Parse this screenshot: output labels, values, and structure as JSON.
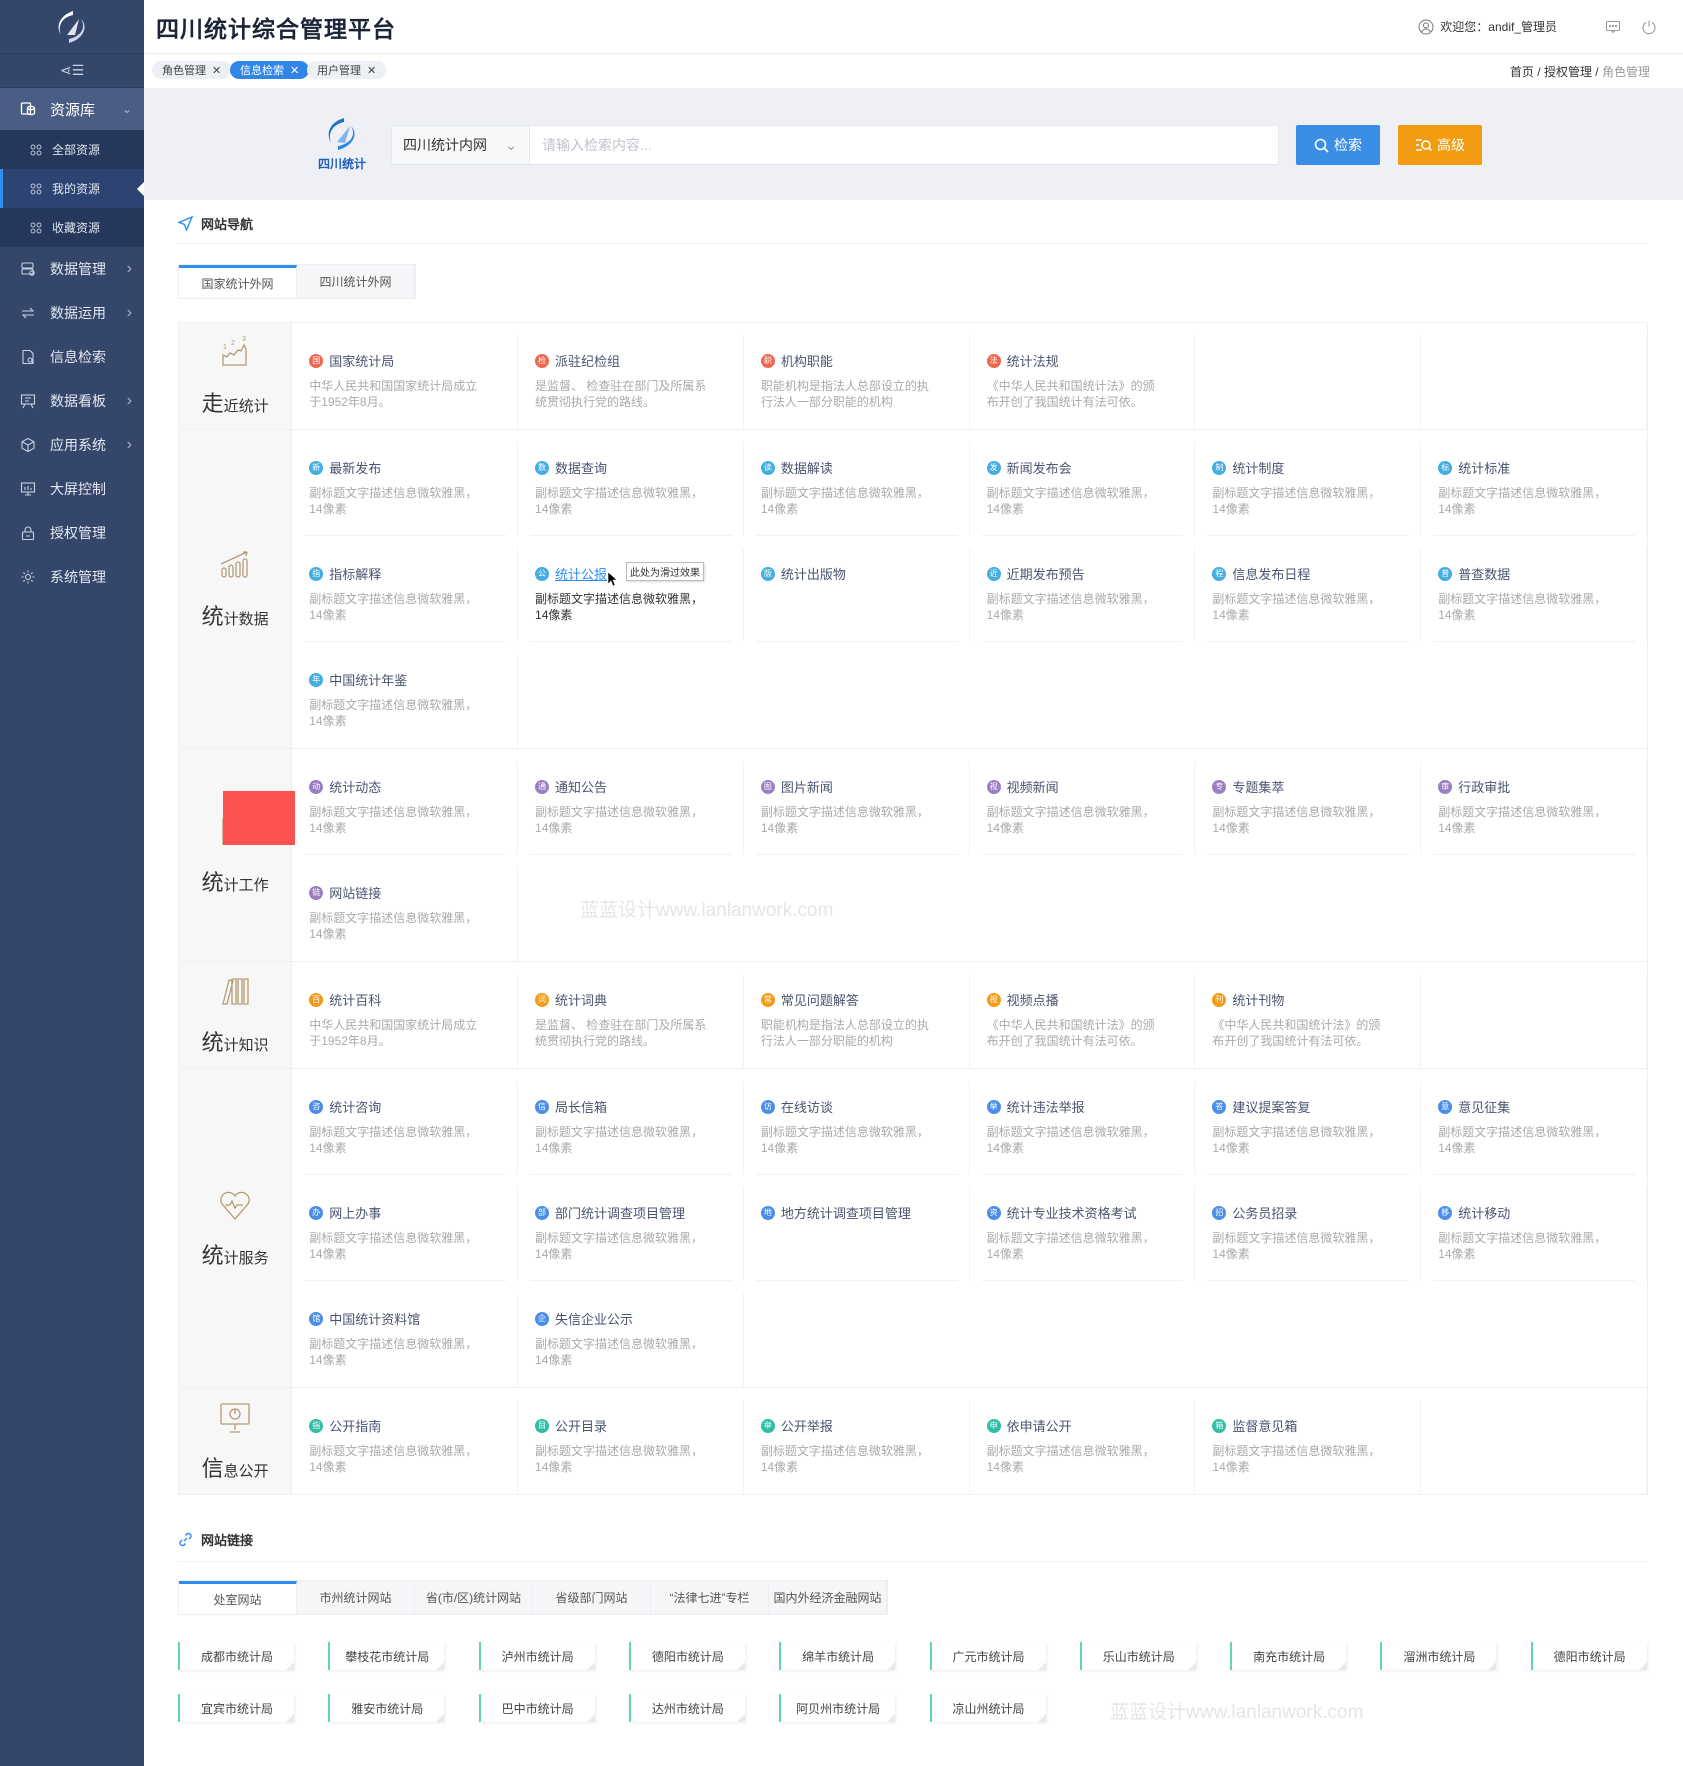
{
  "app": {
    "title": "四川统计综合管理平台",
    "welcome": "欢迎您：andif_管理员"
  },
  "sidebar": {
    "group": {
      "label": "资源库",
      "icon": "database-icon"
    },
    "subitems": [
      {
        "label": "全部资源",
        "active": false
      },
      {
        "label": "我的资源",
        "active": true
      },
      {
        "label": "收藏资源",
        "active": false
      }
    ],
    "items": [
      {
        "label": "数据管理",
        "icon": "server-icon",
        "chevron": true
      },
      {
        "label": "数据运用",
        "icon": "exchange-icon",
        "chevron": true
      },
      {
        "label": "信息检索",
        "icon": "doc-search-icon",
        "chevron": false
      },
      {
        "label": "数据看板",
        "icon": "board-icon",
        "chevron": true
      },
      {
        "label": "应用系统",
        "icon": "cube-icon",
        "chevron": true
      },
      {
        "label": "大屏控制",
        "icon": "monitor-icon",
        "chevron": false
      },
      {
        "label": "授权管理",
        "icon": "lock-icon",
        "chevron": false
      },
      {
        "label": "系统管理",
        "icon": "gear-icon",
        "chevron": false
      }
    ]
  },
  "page_tabs": [
    {
      "label": "角色管理",
      "active": false
    },
    {
      "label": "信息检索",
      "active": true
    },
    {
      "label": "用户管理",
      "active": false
    }
  ],
  "breadcrumb": [
    "首页",
    "授权管理",
    "角色管理"
  ],
  "search": {
    "logo_text": "四川统计",
    "scope": "四川统计内网",
    "placeholder": "请输入检索内容...",
    "search_label": "检索",
    "advanced_label": "高级",
    "search_color": "#3a8ee6",
    "advanced_color": "#f39c12"
  },
  "nav": {
    "heading": "网站导航",
    "tabs": [
      {
        "label": "国家统计外网",
        "active": true
      },
      {
        "label": "四川统计外网",
        "active": false
      }
    ],
    "sections": [
      {
        "big": "走",
        "rest": "近统计",
        "icon": "growth-chart-icon",
        "color": "#f0674f",
        "items": [
          {
            "title": "国家统计局",
            "ch": "国",
            "desc": "中华人民共和国国家统计局成立于1952年8月。"
          },
          {
            "title": "派驻纪检组",
            "ch": "检",
            "desc": "是监督、 检查驻在部门及所属系统贯彻执行党的路线。"
          },
          {
            "title": "机构职能",
            "ch": "职",
            "desc": "职能机构是指法人总部设立的执行法人一部分职能的机构"
          },
          {
            "title": "统计法规",
            "ch": "法",
            "desc": "《中华人民共和国统计法》的颁布开创了我国统计有法可依。"
          }
        ]
      },
      {
        "big": "统",
        "rest": "计数据",
        "icon": "bar-chart-icon",
        "color": "#45aee0",
        "items": [
          {
            "title": "最新发布",
            "ch": "新",
            "desc": "副标题文字描述信息微软雅黑，14像素"
          },
          {
            "title": "数据查询",
            "ch": "数",
            "desc": "副标题文字描述信息微软雅黑，14像素"
          },
          {
            "title": "数据解读",
            "ch": "读",
            "desc": "副标题文字描述信息微软雅黑，14像素"
          },
          {
            "title": "新闻发布会",
            "ch": "发",
            "desc": "副标题文字描述信息微软雅黑，14像素"
          },
          {
            "title": "统计制度",
            "ch": "制",
            "desc": "副标题文字描述信息微软雅黑，14像素"
          },
          {
            "title": "统计标准",
            "ch": "标",
            "desc": "副标题文字描述信息微软雅黑，14像素"
          },
          {
            "title": "指标解释",
            "ch": "指",
            "desc": "副标题文字描述信息微软雅黑，14像素"
          },
          {
            "title": "统计公报",
            "ch": "公",
            "desc": "副标题文字描述信息微软雅黑，14像素",
            "hover": true,
            "tooltip": "此处为滑过效果"
          },
          {
            "title": "统计出版物",
            "ch": "版",
            "desc": ""
          },
          {
            "title": "近期发布预告",
            "ch": "近",
            "desc": "副标题文字描述信息微软雅黑，14像素"
          },
          {
            "title": "信息发布日程",
            "ch": "程",
            "desc": "副标题文字描述信息微软雅黑，14像素"
          },
          {
            "title": "普查数据",
            "ch": "普",
            "desc": "副标题文字描述信息微软雅黑，14像素"
          },
          {
            "title": "中国统计年鉴",
            "ch": "年",
            "desc": "副标题文字描述信息微软雅黑，14像素"
          }
        ]
      },
      {
        "big": "统",
        "rest": "计工作",
        "icon": "work-chart-icon",
        "color": "#9b7fc4",
        "redacted": true,
        "items": [
          {
            "title": "统计动态",
            "ch": "动",
            "desc": "副标题文字描述信息微软雅黑，14像素"
          },
          {
            "title": "通知公告",
            "ch": "通",
            "desc": "副标题文字描述信息微软雅黑，14像素"
          },
          {
            "title": "图片新闻",
            "ch": "图",
            "desc": "副标题文字描述信息微软雅黑，14像素"
          },
          {
            "title": "视频新闻",
            "ch": "视",
            "desc": "副标题文字描述信息微软雅黑，14像素"
          },
          {
            "title": "专题集萃",
            "ch": "专",
            "desc": "副标题文字描述信息微软雅黑，14像素"
          },
          {
            "title": "行政审批",
            "ch": "审",
            "desc": "副标题文字描述信息微软雅黑，14像素"
          },
          {
            "title": "网站链接",
            "ch": "链",
            "desc": "副标题文字描述信息微软雅黑，14像素"
          }
        ]
      },
      {
        "big": "统",
        "rest": "计知识",
        "icon": "books-icon",
        "color": "#f59b1a",
        "items": [
          {
            "title": "统计百科",
            "ch": "百",
            "desc": "中华人民共和国国家统计局成立于1952年8月。"
          },
          {
            "title": "统计词典",
            "ch": "词",
            "desc": "是监督、 检查驻在部门及所属系统贯彻执行党的路线。"
          },
          {
            "title": "常见问题解答",
            "ch": "常",
            "desc": "职能机构是指法人总部设立的执行法人一部分职能的机构"
          },
          {
            "title": "视频点播",
            "ch": "视",
            "desc": "《中华人民共和国统计法》的颁布开创了我国统计有法可依。"
          },
          {
            "title": "统计刊物",
            "ch": "刊",
            "desc": "《中华人民共和国统计法》的颁布开创了我国统计有法可依。"
          }
        ]
      },
      {
        "big": "统",
        "rest": "计服务",
        "icon": "heart-pulse-icon",
        "color": "#4a8ee8",
        "items": [
          {
            "title": "统计咨询",
            "ch": "咨",
            "desc": "副标题文字描述信息微软雅黑，14像素"
          },
          {
            "title": "局长信箱",
            "ch": "信",
            "desc": "副标题文字描述信息微软雅黑，14像素"
          },
          {
            "title": "在线访谈",
            "ch": "访",
            "desc": "副标题文字描述信息微软雅黑，14像素"
          },
          {
            "title": "统计违法举报",
            "ch": "举",
            "desc": "副标题文字描述信息微软雅黑，14像素"
          },
          {
            "title": "建议提案答复",
            "ch": "答",
            "desc": "副标题文字描述信息微软雅黑，14像素"
          },
          {
            "title": "意见征集",
            "ch": "意",
            "desc": "副标题文字描述信息微软雅黑，14像素"
          },
          {
            "title": "网上办事",
            "ch": "办",
            "desc": "副标题文字描述信息微软雅黑，14像素"
          },
          {
            "title": "部门统计调查项目管理",
            "ch": "部",
            "desc": "副标题文字描述信息微软雅黑，14像素"
          },
          {
            "title": "地方统计调查项目管理",
            "ch": "地",
            "desc": ""
          },
          {
            "title": "统计专业技术资格考试",
            "ch": "资",
            "desc": "副标题文字描述信息微软雅黑，14像素"
          },
          {
            "title": "公务员招录",
            "ch": "招",
            "desc": "副标题文字描述信息微软雅黑，14像素"
          },
          {
            "title": "统计移动",
            "ch": "移",
            "desc": "副标题文字描述信息微软雅黑，14像素"
          },
          {
            "title": "中国统计资料馆",
            "ch": "馆",
            "desc": "副标题文字描述信息微软雅黑，14像素"
          },
          {
            "title": "失信企业公示",
            "ch": "企",
            "desc": "副标题文字描述信息微软雅黑，14像素"
          }
        ]
      },
      {
        "big": "信",
        "rest": "息公开",
        "icon": "presentation-icon",
        "color": "#2ebfa5",
        "items": [
          {
            "title": "公开指南",
            "ch": "指",
            "desc": "副标题文字描述信息微软雅黑，14像素"
          },
          {
            "title": "公开目录",
            "ch": "目",
            "desc": "副标题文字描述信息微软雅黑，14像素"
          },
          {
            "title": "公开举报",
            "ch": "举",
            "desc": "副标题文字描述信息微软雅黑，14像素"
          },
          {
            "title": "依申请公开",
            "ch": "申",
            "desc": "副标题文字描述信息微软雅黑，14像素"
          },
          {
            "title": "监督意见箱",
            "ch": "箱",
            "desc": "副标题文字描述信息微软雅黑，14像素"
          }
        ]
      }
    ]
  },
  "links": {
    "heading": "网站链接",
    "tabs": [
      {
        "label": "处室网站",
        "active": true
      },
      {
        "label": "市州统计网站",
        "active": false
      },
      {
        "label": "省(市/区)统计网站",
        "active": false
      },
      {
        "label": "省级部门网站",
        "active": false
      },
      {
        "label": "“法律七进”专栏",
        "active": false
      },
      {
        "label": "国内外经济金融网站",
        "active": false
      }
    ],
    "items": [
      "成都市统计局",
      "攀枝花市统计局",
      "泸州市统计局",
      "德阳市统计局",
      "绵羊市统计局",
      "广元市统计局",
      "乐山市统计局",
      "南充市统计局",
      "溜洲市统计局",
      "德阳市统计局",
      "宜宾市统计局",
      "雅安市统计局",
      "巴中市统计局",
      "达州市统计局",
      "阿贝州市统计局",
      "凉山州统计局"
    ]
  },
  "watermark": "蓝蓝设计www.lanlanwork.com"
}
